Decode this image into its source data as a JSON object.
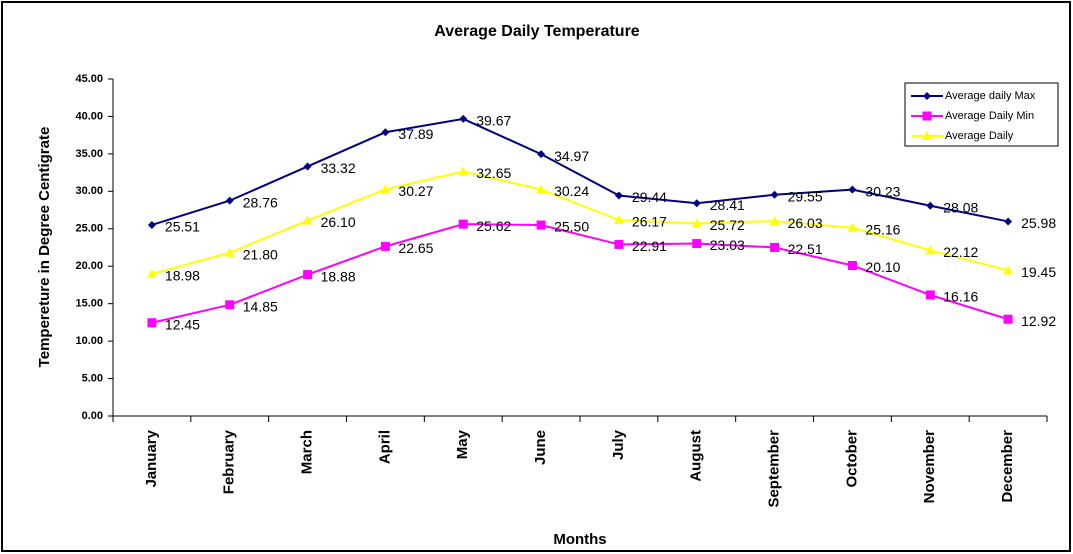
{
  "chart_data": {
    "type": "line",
    "title": "Average Daily Temperature",
    "x_label": "Months",
    "y_label": "Tempereture in Degree Centigrate",
    "categories": [
      "January",
      "February",
      "March",
      "April",
      "May",
      "June",
      "July",
      "August",
      "September",
      "October",
      "November",
      "December"
    ],
    "series": [
      {
        "name": "Average daily Max",
        "color": "#000080",
        "marker": "diamond",
        "values": [
          25.51,
          28.76,
          33.32,
          37.89,
          39.67,
          34.97,
          29.44,
          28.41,
          29.55,
          30.23,
          28.08,
          25.98
        ],
        "value_labels": [
          "25.51",
          "28.76",
          "33.32",
          "37.89",
          "39.67",
          "34.97",
          "29.44",
          "28.41",
          "29.55",
          "30.23",
          "28.08",
          "25.98"
        ]
      },
      {
        "name": "Average Daily  Min",
        "color": "#ff00ff",
        "marker": "square",
        "values": [
          12.45,
          14.85,
          18.88,
          22.65,
          25.62,
          25.5,
          22.91,
          23.03,
          22.51,
          20.1,
          16.16,
          12.92
        ],
        "value_labels": [
          "12.45",
          "14.85",
          "18.88",
          "22.65",
          "25.62",
          "25.50",
          "22.91",
          "23.03",
          "22.51",
          "20.10",
          "16.16",
          "12.92"
        ]
      },
      {
        "name": "Average Daily",
        "color": "#ffff00",
        "marker": "triangle",
        "values": [
          18.98,
          21.8,
          26.1,
          30.27,
          32.65,
          30.24,
          26.17,
          25.72,
          26.03,
          25.16,
          22.12,
          19.45
        ],
        "value_labels": [
          "18.98",
          "21.80",
          "26.10",
          "30.27",
          "32.65",
          "30.24",
          "26.17",
          "25.72",
          "26.03",
          "25.16",
          "22.12",
          "19.45"
        ]
      }
    ],
    "ylim": [
      0,
      45
    ],
    "yticks": [
      {
        "value": 0,
        "label": "0.00"
      },
      {
        "value": 5,
        "label": "5.00"
      },
      {
        "value": 10,
        "label": "10.00"
      },
      {
        "value": 15,
        "label": "15.00"
      },
      {
        "value": 20,
        "label": "20.00"
      },
      {
        "value": 25,
        "label": "25.00"
      },
      {
        "value": 30,
        "label": "30.00"
      },
      {
        "value": 35,
        "label": "35.00"
      },
      {
        "value": 40,
        "label": "40.00"
      },
      {
        "value": 45,
        "label": "45.00"
      }
    ],
    "grid": false,
    "legend": "upper right"
  }
}
